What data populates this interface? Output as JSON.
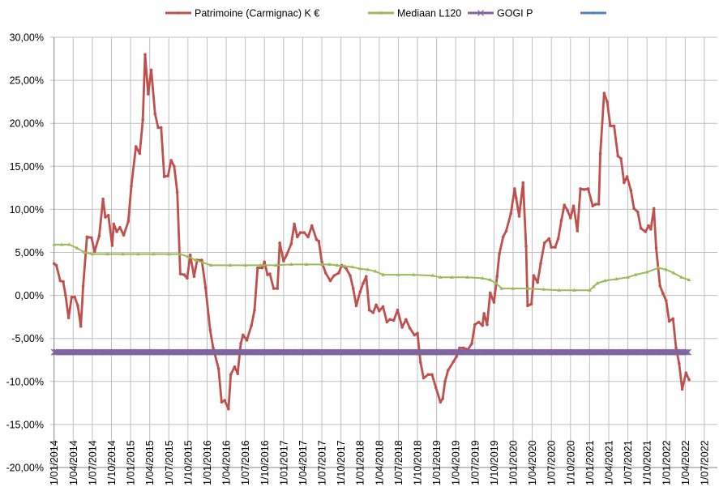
{
  "chart_data": {
    "type": "line",
    "title": "",
    "xlabel": "",
    "ylabel": "",
    "x_units": "decimal year",
    "xlim": [
      2014.0,
      2022.67
    ],
    "ylim": [
      -20,
      30
    ],
    "y_ticks": [
      30,
      25,
      20,
      15,
      10,
      5,
      0,
      -5,
      -10,
      -15,
      -20
    ],
    "y_tick_labels": [
      "30,00%",
      "25,00%",
      "20,00%",
      "15,00%",
      "10,00%",
      "5,00%",
      "0,00%",
      "-5,00%",
      "-10,00%",
      "-15,00%",
      "-20,00%"
    ],
    "x_tick_labels": [
      "1/01/2014",
      "1/04/2014",
      "1/07/2014",
      "1/10/2014",
      "1/01/2015",
      "1/04/2015",
      "1/07/2015",
      "1/10/2015",
      "1/01/2016",
      "1/04/2016",
      "1/07/2016",
      "1/10/2016",
      "1/01/2017",
      "1/04/2017",
      "1/07/2017",
      "1/10/2017",
      "1/01/2018",
      "1/04/2018",
      "1/07/2018",
      "1/10/2018",
      "1/01/2019",
      "1/04/2019",
      "1/07/2019",
      "1/10/2019",
      "1/01/2020",
      "1/04/2020",
      "1/07/2020",
      "1/10/2020",
      "1/01/2021",
      "1/04/2021",
      "1/07/2021",
      "1/10/2021",
      "1/01/2022",
      "1/04/2022",
      "1/07/2022"
    ],
    "grid": true,
    "legend_position": "top",
    "series": [
      {
        "name": "Patrimoine (Carmignac) K €",
        "color": "#c0504d",
        "marker": "dot",
        "x": [
          2014.0,
          2014.03,
          2014.08,
          2014.12,
          2014.15,
          2014.19,
          2014.23,
          2014.27,
          2014.31,
          2014.35,
          2014.38,
          2014.43,
          2014.49,
          2014.53,
          2014.59,
          2014.64,
          2014.67,
          2014.71,
          2014.76,
          2014.78,
          2014.82,
          2014.86,
          2014.91,
          2014.97,
          2015.01,
          2015.07,
          2015.12,
          2015.16,
          2015.19,
          2015.23,
          2015.27,
          2015.32,
          2015.36,
          2015.4,
          2015.44,
          2015.49,
          2015.53,
          2015.57,
          2015.61,
          2015.65,
          2015.7,
          2015.74,
          2015.78,
          2015.83,
          2015.87,
          2015.93,
          2015.98,
          2016.04,
          2016.08,
          2016.15,
          2016.19,
          2016.23,
          2016.28,
          2016.31,
          2016.36,
          2016.4,
          2016.44,
          2016.47,
          2016.52,
          2016.58,
          2016.62,
          2016.66,
          2016.72,
          2016.75,
          2016.79,
          2016.82,
          2016.87,
          2016.92,
          2016.95,
          2017.0,
          2017.04,
          2017.1,
          2017.14,
          2017.18,
          2017.22,
          2017.27,
          2017.32,
          2017.37,
          2017.43,
          2017.46,
          2017.5,
          2017.55,
          2017.61,
          2017.66,
          2017.72,
          2017.76,
          2017.82,
          2017.87,
          2017.91,
          2017.95,
          2018.0,
          2018.04,
          2018.08,
          2018.12,
          2018.17,
          2018.21,
          2018.25,
          2018.3,
          2018.35,
          2018.39,
          2018.44,
          2018.49,
          2018.55,
          2018.6,
          2018.65,
          2018.71,
          2018.75,
          2018.79,
          2018.83,
          2018.89,
          2018.94,
          2018.99,
          2019.05,
          2019.08,
          2019.11,
          2019.15,
          2019.22,
          2019.26,
          2019.3,
          2019.35,
          2019.41,
          2019.46,
          2019.5,
          2019.55,
          2019.6,
          2019.62,
          2019.66,
          2019.7,
          2019.75,
          2019.79,
          2019.82,
          2019.87,
          2019.91,
          2019.97,
          2020.02,
          2020.04,
          2020.08,
          2020.13,
          2020.17,
          2020.19,
          2020.24,
          2020.27,
          2020.32,
          2020.36,
          2020.41,
          2020.47,
          2020.5,
          2020.55,
          2020.59,
          2020.63,
          2020.67,
          2020.71,
          2020.75,
          2020.79,
          2020.84,
          2020.88,
          2020.93,
          2020.98,
          2021.04,
          2021.08,
          2021.12,
          2021.14,
          2021.19,
          2021.23,
          2021.27,
          2021.32,
          2021.37,
          2021.41,
          2021.45,
          2021.49,
          2021.54,
          2021.58,
          2021.63,
          2021.67,
          2021.73,
          2021.77,
          2021.8,
          2021.84,
          2021.87,
          2021.92,
          2021.96,
          2022.0,
          2022.04,
          2022.09,
          2022.13,
          2022.17,
          2022.21,
          2022.26,
          2022.3
        ],
        "y": [
          3.7,
          3.5,
          1.7,
          1.6,
          0.0,
          -2.6,
          -0.2,
          -0.2,
          -1.2,
          -3.6,
          1.1,
          6.8,
          6.7,
          5.1,
          6.9,
          11.2,
          9.1,
          9.3,
          5.8,
          8.3,
          7.4,
          7.9,
          7.0,
          8.6,
          12.7,
          17.3,
          16.5,
          20.4,
          28.0,
          23.4,
          26.2,
          21.1,
          19.5,
          19.5,
          13.8,
          13.9,
          15.7,
          15.0,
          12.0,
          2.5,
          2.4,
          2.0,
          4.7,
          2.2,
          4.1,
          4.1,
          0.9,
          -4.0,
          -6.1,
          -8.5,
          -12.4,
          -12.2,
          -13.2,
          -9.2,
          -8.3,
          -9.1,
          -5.6,
          -4.6,
          -5.2,
          -3.5,
          -1.7,
          3.2,
          3.2,
          3.9,
          2.4,
          2.5,
          0.8,
          0.8,
          6.1,
          4.0,
          4.7,
          6.0,
          8.3,
          6.8,
          7.3,
          7.3,
          6.8,
          8.1,
          6.5,
          6.3,
          3.9,
          2.6,
          1.7,
          2.3,
          2.6,
          3.5,
          3.1,
          2.3,
          0.8,
          -1.2,
          0.4,
          1.4,
          2.2,
          -1.7,
          -2.0,
          -1.1,
          -1.8,
          -1.3,
          -3.1,
          -2.8,
          -2.9,
          -1.7,
          -3.7,
          -2.8,
          -3.8,
          -4.6,
          -4.4,
          -7.8,
          -9.6,
          -9.2,
          -9.2,
          -10.7,
          -12.4,
          -12.0,
          -10.0,
          -8.7,
          -7.7,
          -7.1,
          -6.1,
          -6.1,
          -6.3,
          -5.6,
          -3.4,
          -3.1,
          -3.5,
          -2.1,
          -3.4,
          0.3,
          -0.8,
          2.2,
          4.8,
          6.8,
          7.5,
          9.5,
          12.4,
          11.3,
          9.2,
          13.1,
          5.7,
          -1.2,
          -1.0,
          2.3,
          1.5,
          3.7,
          6.1,
          6.6,
          5.6,
          5.6,
          6.6,
          8.7,
          10.5,
          9.9,
          9.0,
          10.4,
          7.5,
          12.4,
          12.3,
          12.4,
          10.4,
          10.6,
          10.6,
          16.5,
          23.5,
          22.5,
          19.7,
          19.7,
          16.2,
          15.9,
          13.1,
          13.8,
          12.2,
          10.1,
          9.7,
          7.8,
          7.4,
          8.1,
          7.7,
          10.1,
          5.5,
          1.1,
          0.2,
          -0.6,
          -3.0,
          -2.7,
          -6.1,
          -7.9,
          -10.9,
          -9.0,
          -9.8
        ]
      },
      {
        "name": "Mediaan L120",
        "color": "#9bbb59",
        "marker": "triangle",
        "x": [
          2014.0,
          2014.1,
          2014.2,
          2014.3,
          2014.4,
          2014.5,
          2014.7,
          2014.9,
          2015.1,
          2015.3,
          2015.5,
          2015.65,
          2015.75,
          2015.85,
          2015.95,
          2016.05,
          2016.3,
          2016.5,
          2016.7,
          2016.9,
          2017.1,
          2017.3,
          2017.5,
          2017.6,
          2017.7,
          2017.8,
          2017.9,
          2018.0,
          2018.1,
          2018.2,
          2018.3,
          2018.5,
          2018.7,
          2018.95,
          2019.05,
          2019.2,
          2019.4,
          2019.6,
          2019.7,
          2019.78,
          2019.85,
          2020.0,
          2020.2,
          2020.4,
          2020.6,
          2020.8,
          2021.0,
          2021.05,
          2021.1,
          2021.2,
          2021.35,
          2021.5,
          2021.6,
          2021.75,
          2021.9,
          2022.0,
          2022.1,
          2022.2,
          2022.3
        ],
        "y": [
          5.9,
          5.9,
          5.9,
          5.5,
          5.0,
          4.8,
          4.8,
          4.8,
          4.8,
          4.8,
          4.8,
          4.8,
          4.5,
          4.1,
          3.8,
          3.5,
          3.5,
          3.5,
          3.5,
          3.5,
          3.6,
          3.6,
          3.6,
          3.6,
          3.5,
          3.4,
          3.3,
          3.1,
          3.0,
          2.8,
          2.4,
          2.4,
          2.4,
          2.3,
          2.1,
          2.1,
          2.1,
          2.0,
          1.8,
          1.4,
          0.8,
          0.8,
          0.8,
          0.7,
          0.6,
          0.6,
          0.6,
          1.0,
          1.4,
          1.7,
          1.9,
          2.1,
          2.4,
          2.7,
          3.2,
          3.0,
          2.6,
          2.1,
          1.8
        ]
      },
      {
        "name": "GOGI P",
        "color": "#8064a2",
        "marker": "x",
        "x": [
          2014.0,
          2022.3
        ],
        "y": [
          -6.6,
          -6.6
        ]
      },
      {
        "name": "",
        "color": "#4f81bd",
        "marker": "dot",
        "x": [],
        "y": []
      }
    ]
  }
}
